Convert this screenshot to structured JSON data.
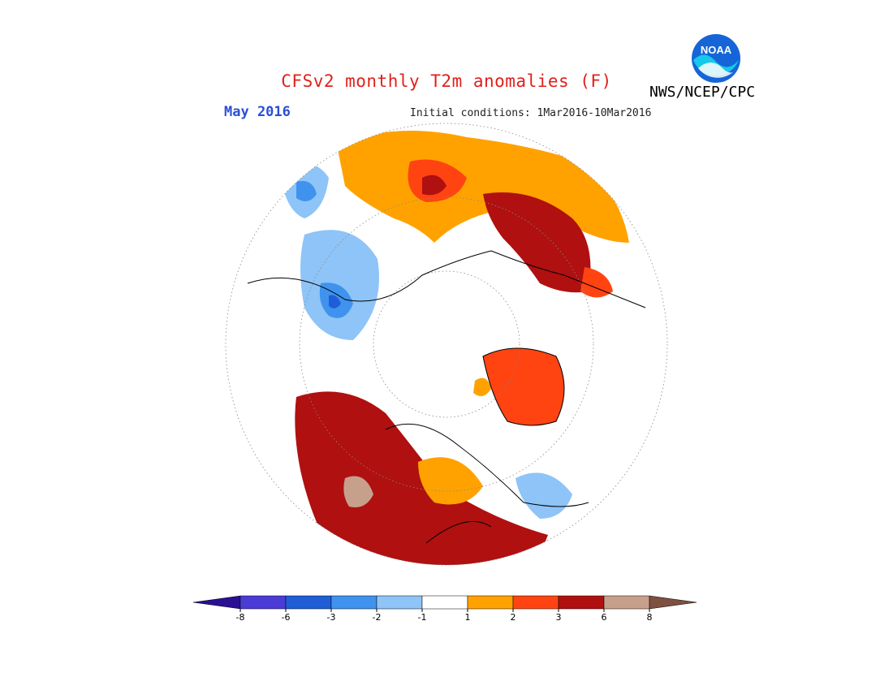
{
  "header": {
    "title": "CFSv2 monthly T2m anomalies (F)",
    "month": "May 2016",
    "initial_conditions": "Initial conditions: 1Mar2016-10Mar2016",
    "agency": "NWS/NCEP/CPC",
    "logo_text": "NOAA"
  },
  "colors": {
    "title": "#e0201a",
    "month": "#2a4fd6",
    "land_outline": "#000000"
  },
  "legend": {
    "bins": [
      {
        "color": "#2a0f94",
        "label": "-8"
      },
      {
        "color": "#4b3bd6",
        "label": "-6"
      },
      {
        "color": "#1f5ed6",
        "label": "-3"
      },
      {
        "color": "#3f93ee",
        "label": "-2"
      },
      {
        "color": "#8ec4f7",
        "label": "-1"
      },
      {
        "color": "#ffffff",
        "label": "1"
      },
      {
        "color": "#ffa200",
        "label": "2"
      },
      {
        "color": "#ff4412",
        "label": "3"
      },
      {
        "color": "#b01010",
        "label": "6"
      },
      {
        "color": "#c7a08c",
        "label": "8"
      },
      {
        "color": "#7d5040",
        "label": ""
      }
    ]
  },
  "anomaly_fields": [
    {
      "region": "eurasia-warm",
      "color": "#ffa200"
    },
    {
      "region": "siberia-hot",
      "color": "#b01010"
    },
    {
      "region": "alaska-canada-hot",
      "color": "#b01010"
    },
    {
      "region": "greenland-warm",
      "color": "#ff4412"
    },
    {
      "region": "western-asia-cold",
      "color": "#8ec4f7"
    },
    {
      "region": "canada-extreme",
      "color": "#c7a08c"
    }
  ]
}
